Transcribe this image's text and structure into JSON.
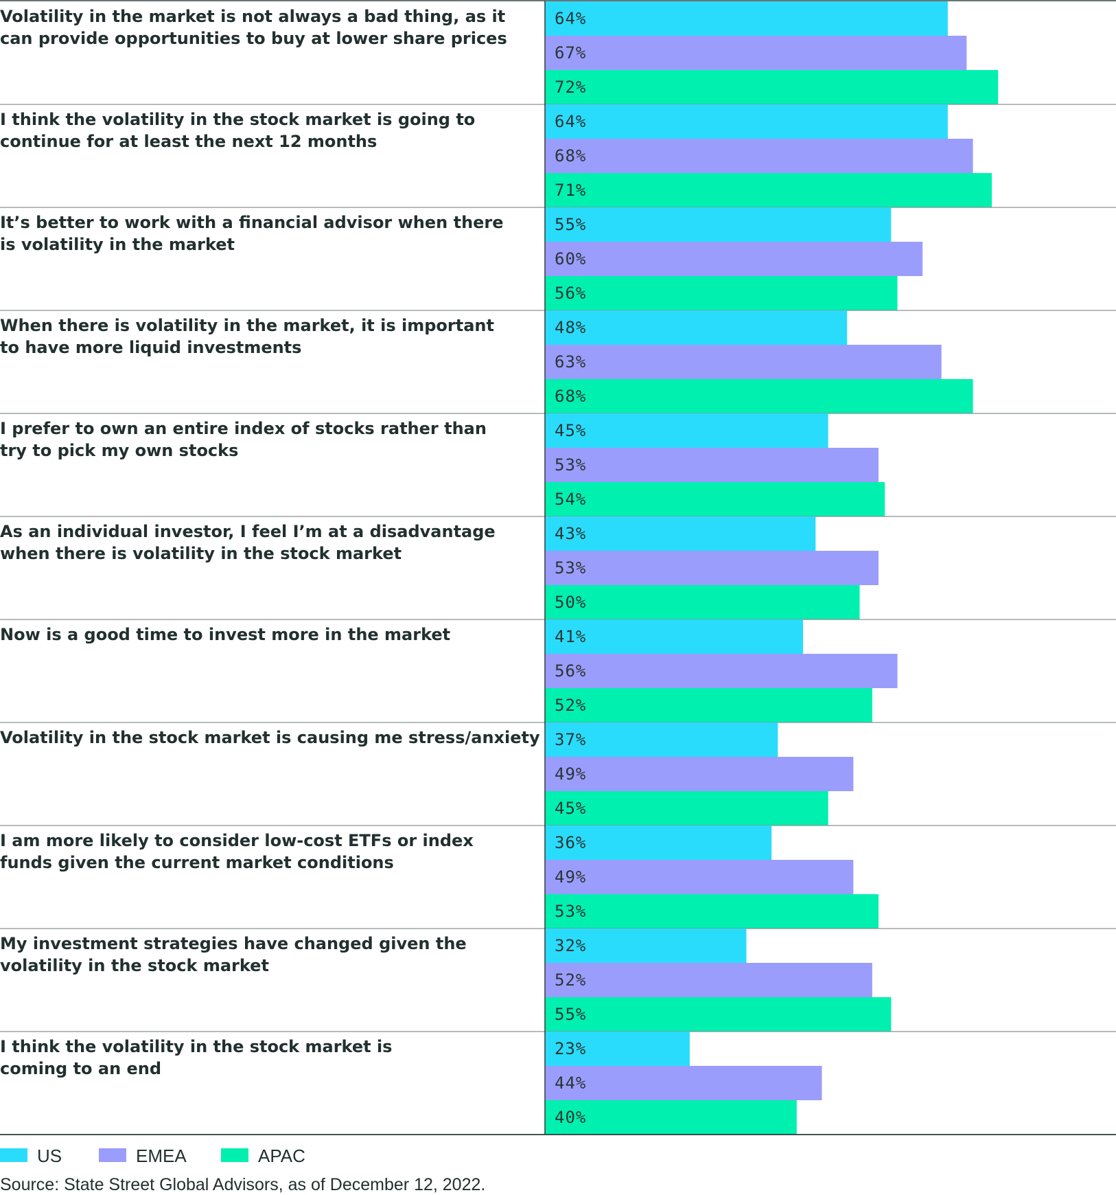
{
  "chart_data": {
    "type": "bar",
    "orientation": "horizontal",
    "categories": [
      [
        "Volatility in the market is not always a bad thing, as it",
        "can provide opportunities to buy at lower share prices"
      ],
      [
        "I think the volatility in the stock market is going to",
        "continue for at least the next 12 months"
      ],
      [
        "It’s better to work with a financial advisor when there",
        "is volatility in the market"
      ],
      [
        "When there is volatility in the market, it is important",
        "to have more liquid investments"
      ],
      [
        "I prefer to own an entire index of stocks rather than",
        "try to pick my own stocks"
      ],
      [
        "As an individual investor, I feel I’m at a disadvantage",
        "when there is volatility in the stock market"
      ],
      [
        "Now is a good time to invest more in the market"
      ],
      [
        "Volatility in the stock market is causing me stress/anxiety"
      ],
      [
        "I am more likely to consider low-cost ETFs or index",
        "funds given the current market conditions"
      ],
      [
        "My investment strategies have changed given the",
        "volatility in the stock market"
      ],
      [
        "I think the volatility in the stock market is",
        "coming to an end"
      ]
    ],
    "series": [
      {
        "name": "US",
        "color": "#29dcfb",
        "values": [
          64,
          64,
          55,
          48,
          45,
          43,
          41,
          37,
          36,
          32,
          23
        ]
      },
      {
        "name": "EMEA",
        "color": "#9b9dfc",
        "values": [
          67,
          68,
          60,
          63,
          53,
          53,
          56,
          49,
          49,
          52,
          44
        ]
      },
      {
        "name": "APAC",
        "color": "#00f0b0",
        "values": [
          72,
          71,
          56,
          68,
          54,
          50,
          52,
          45,
          53,
          55,
          40
        ]
      }
    ],
    "value_suffix": "%",
    "xlim": [
      0,
      100
    ],
    "grid": false,
    "legend_position": "bottom-left"
  },
  "source_note": "Source: State Street Global Advisors, as of December 12, 2022."
}
